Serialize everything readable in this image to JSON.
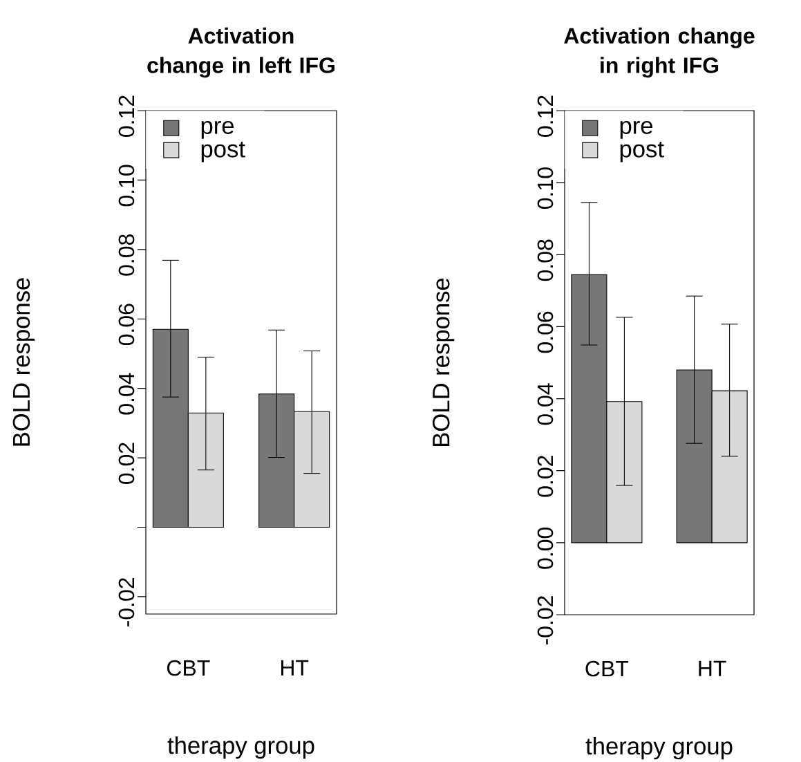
{
  "chart_data": [
    {
      "type": "bar",
      "title": "Activation change in left IFG",
      "xlabel": "therapy group",
      "ylabel": "BOLD response",
      "categories": [
        "CBT",
        "HT"
      ],
      "series": [
        {
          "name": "pre",
          "color": "#777777",
          "values": [
            0.057,
            0.0384
          ],
          "errors": [
            [
              0.0375,
              0.0769
            ],
            [
              0.0201,
              0.0568
            ]
          ]
        },
        {
          "name": "post",
          "color": "#d9d9d9",
          "values": [
            0.0329,
            0.0333
          ],
          "errors": [
            [
              0.0165,
              0.049
            ],
            [
              0.0155,
              0.0508
            ]
          ]
        }
      ],
      "ylim": [
        -0.025,
        0.12
      ],
      "yticks": [
        {
          "value": -0.02,
          "label": "-0.02"
        },
        {
          "value": 0,
          "label": null
        },
        0.02,
        0.04,
        0.06,
        0.08,
        {
          "value": 0.1,
          "label": "0.10"
        },
        0.12
      ],
      "legend": "top left"
    },
    {
      "type": "bar",
      "title": "Activation change in right IFG",
      "xlabel": "therapy group",
      "ylabel": "BOLD response",
      "categories": [
        "CBT",
        "HT"
      ],
      "series": [
        {
          "name": "pre",
          "color": "#777777",
          "values": [
            0.0745,
            0.048
          ],
          "errors": [
            [
              0.0549,
              0.0945
            ],
            [
              0.0276,
              0.0685
            ]
          ]
        },
        {
          "name": "post",
          "color": "#d9d9d9",
          "values": [
            0.0392,
            0.0422
          ],
          "errors": [
            [
              0.0159,
              0.0626
            ],
            [
              0.024,
              0.0607
            ]
          ]
        }
      ],
      "ylim": [
        -0.02,
        0.12
      ],
      "yticks": [
        {
          "value": -0.02,
          "label": "-0.02"
        },
        {
          "value": 0,
          "label": "0.00"
        },
        0.02,
        0.04,
        0.06,
        0.08,
        {
          "value": 0.1,
          "label": "0.10"
        },
        0.12
      ],
      "legend": "top left"
    }
  ]
}
